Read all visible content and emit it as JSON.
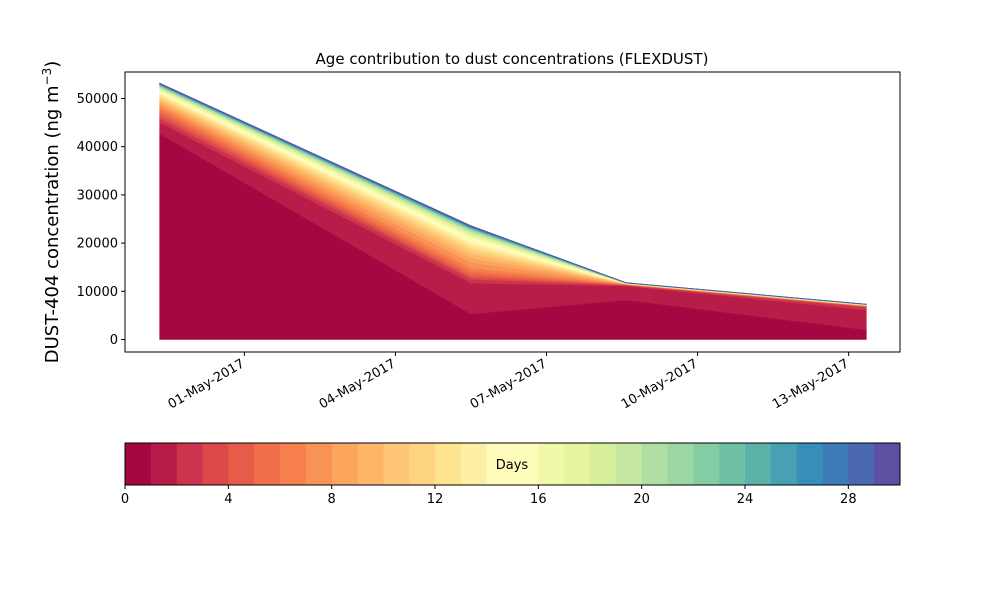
{
  "chart_data": {
    "type": "area",
    "stacked": true,
    "title": "Age contribution to dust concentrations (FLEXDUST)",
    "xlabel": "",
    "ylabel": "DUST-404 concentration (ng m⁻³)",
    "ylabel_parts": {
      "main": "DUST-404 concentration (ng m",
      "sup": "−3",
      "close": ")"
    },
    "ylim": [
      -2600,
      55500
    ],
    "yticks": [
      0,
      10000,
      20000,
      30000,
      40000,
      50000
    ],
    "ytick_labels": [
      "0",
      "10000",
      "20000",
      "30000",
      "40000",
      "50000"
    ],
    "x_days_from_01may": [
      -1.68,
      4.5,
      7.58,
      12.35
    ],
    "xlim_days_from_01may": [
      -2.37,
      13.02
    ],
    "xticks_days_from_01may": [
      0,
      3,
      6,
      9,
      12
    ],
    "xtick_labels": [
      "01-May-2017",
      "04-May-2017",
      "07-May-2017",
      "10-May-2017",
      "13-May-2017"
    ],
    "x_dates": [
      "29-Apr-2017 ~08:00",
      "05-May-2017 ~12:00",
      "08-May-2017 ~14:00",
      "13-May-2017 ~08:00"
    ],
    "series_note": "30 stacked layers, one per particle age bin (days 0-30), colored by Spectral colormap",
    "series": [
      {
        "name": "0-1 d",
        "values": [
          42700,
          5300,
          8200,
          2000
        ]
      },
      {
        "name": "1-2 d",
        "values": [
          2300,
          6400,
          2900,
          4100
        ]
      },
      {
        "name": "2-3 d",
        "values": [
          800,
          800,
          150,
          600
        ]
      },
      {
        "name": "3-4 d",
        "values": [
          700,
          500,
          60,
          120
        ]
      },
      {
        "name": "4-5 d",
        "values": [
          650,
          600,
          50,
          60
        ]
      },
      {
        "name": "5-6 d",
        "values": [
          600,
          600,
          40,
          50
        ]
      },
      {
        "name": "6-7 d",
        "values": [
          550,
          700,
          40,
          40
        ]
      },
      {
        "name": "7-8 d",
        "values": [
          500,
          1100,
          30,
          30
        ]
      },
      {
        "name": "8-9 d",
        "values": [
          450,
          900,
          30,
          25
        ]
      },
      {
        "name": "9-10 d",
        "values": [
          420,
          800,
          25,
          20
        ]
      },
      {
        "name": "10-11 d",
        "values": [
          400,
          700,
          25,
          20
        ]
      },
      {
        "name": "11-12 d",
        "values": [
          370,
          650,
          20,
          20
        ]
      },
      {
        "name": "12-13 d",
        "values": [
          340,
          600,
          20,
          20
        ]
      },
      {
        "name": "13-14 d",
        "values": [
          310,
          550,
          20,
          20
        ]
      },
      {
        "name": "14-15 d",
        "values": [
          280,
          500,
          15,
          20
        ]
      },
      {
        "name": "15-16 d",
        "values": [
          250,
          450,
          15,
          15
        ]
      },
      {
        "name": "16-17 d",
        "values": [
          220,
          400,
          15,
          15
        ]
      },
      {
        "name": "17-18 d",
        "values": [
          190,
          350,
          10,
          15
        ]
      },
      {
        "name": "18-19 d",
        "values": [
          170,
          300,
          10,
          15
        ]
      },
      {
        "name": "19-20 d",
        "values": [
          150,
          250,
          10,
          15
        ]
      },
      {
        "name": "20-21 d",
        "values": [
          130,
          200,
          10,
          10
        ]
      },
      {
        "name": "21-22 d",
        "values": [
          110,
          170,
          10,
          10
        ]
      },
      {
        "name": "22-23 d",
        "values": [
          100,
          140,
          10,
          10
        ]
      },
      {
        "name": "23-24 d",
        "values": [
          90,
          120,
          10,
          10
        ]
      },
      {
        "name": "24-25 d",
        "values": [
          80,
          100,
          10,
          10
        ]
      },
      {
        "name": "25-26 d",
        "values": [
          70,
          90,
          10,
          10
        ]
      },
      {
        "name": "26-27 d",
        "values": [
          70,
          80,
          10,
          10
        ]
      },
      {
        "name": "27-28 d",
        "values": [
          70,
          80,
          10,
          10
        ]
      },
      {
        "name": "28-29 d",
        "values": [
          70,
          80,
          15,
          10
        ]
      },
      {
        "name": "29-30 d",
        "values": [
          80,
          90,
          20,
          20
        ]
      }
    ],
    "totals_approx": [
      52700,
      23300,
      11700,
      7300
    ],
    "colorbar": {
      "label": "Days",
      "range": [
        0,
        30
      ],
      "ticks": [
        0,
        4,
        8,
        12,
        16,
        20,
        24,
        28
      ],
      "tick_labels": [
        "0",
        "4",
        "8",
        "12",
        "16",
        "20",
        "24",
        "28"
      ],
      "orientation": "horizontal",
      "placement": "bottom",
      "colormap": "Spectral",
      "colors": [
        "#a40843",
        "#b81c48",
        "#cc334c",
        "#dc494a",
        "#e65d4a",
        "#f0704a",
        "#f67f4b",
        "#f99355",
        "#fca55d",
        "#fdb567",
        "#fdc574",
        "#fed481",
        "#fee390",
        "#feefa4",
        "#fffcbb",
        "#fbfdb8",
        "#f1f9a9",
        "#e6f59d",
        "#d7ef9b",
        "#c5e79f",
        "#b1dfa3",
        "#9cd6a4",
        "#84cca4",
        "#6ec1a5",
        "#5ab2a8",
        "#48a0b2",
        "#378ebb",
        "#3c7cb7",
        "#4b68ae",
        "#5e4fa2"
      ]
    },
    "grid": false,
    "legend": "none"
  }
}
